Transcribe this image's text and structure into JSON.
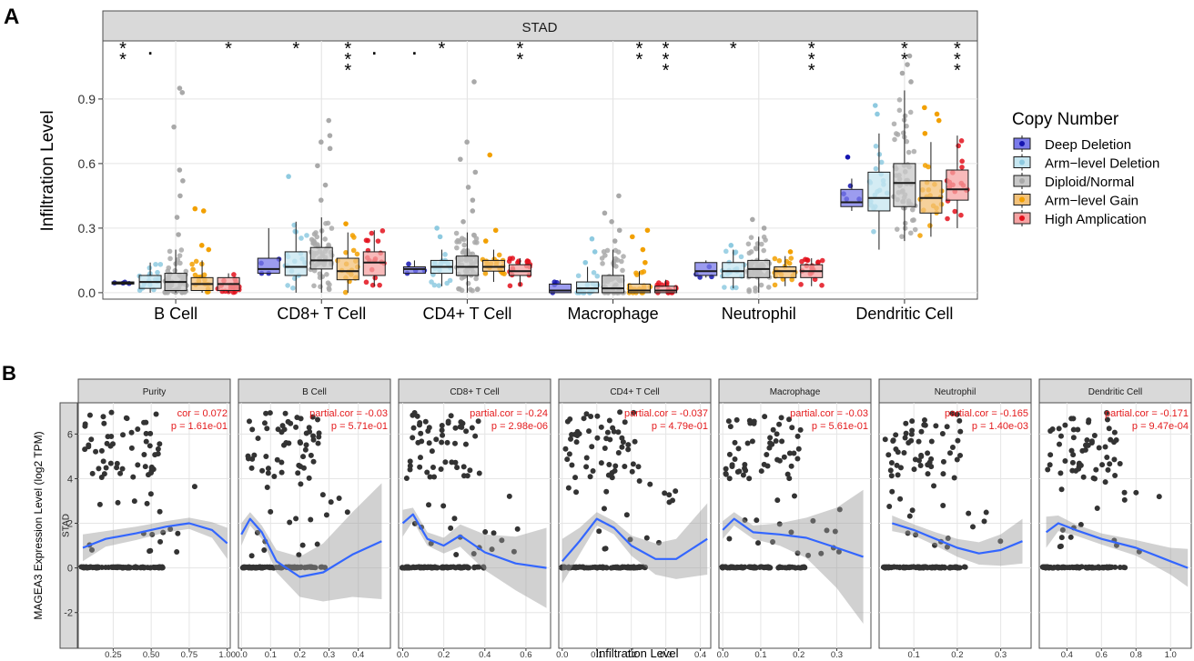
{
  "panels": {
    "a_label": "A",
    "b_label": "B"
  },
  "colors": {
    "panel_bg": "#ffffff",
    "grid": "#e5e5e5",
    "strip": "#d9d9d9",
    "frame": "#4d4d4d",
    "points_gray": "#bdbdbd",
    "scatter_point": "#333333",
    "loess_line": "#3366ff",
    "ribbon": "#999999",
    "annotation_red": "#e41a1c",
    "group_fill": [
      "#7b7bea",
      "#c6e6f0",
      "#c8c8c8",
      "#f3c27a",
      "#f5a3a3"
    ],
    "group_point": [
      "#1515b0",
      "#8ecae0",
      "#a9a9a9",
      "#f2a000",
      "#e3101c"
    ]
  },
  "chart_data": [
    {
      "type": "box",
      "panel": "A",
      "strip_title": "STAD",
      "ylabel": "Infiltration Level",
      "xlabel": "",
      "ylim": [
        -0.03,
        1.17
      ],
      "yticks": [
        0.0,
        0.3,
        0.6,
        0.9
      ],
      "ytick_labels": [
        "0.0",
        "0.3",
        "0.6",
        "0.9"
      ],
      "categories": [
        "B Cell",
        "CD8+ T Cell",
        "CD4+ T Cell",
        "Macrophage",
        "Neutrophil",
        "Dendritic Cell"
      ],
      "legend": {
        "title": "Copy Number",
        "position": "right",
        "entries": [
          "Deep Deletion",
          "Arm−level Deletion",
          "Diploid/Normal",
          "Arm−level Gain",
          "High Amplication"
        ]
      },
      "series": [
        {
          "name": "Deep Deletion",
          "boxes": [
            {
              "q1": 0.04,
              "med": 0.045,
              "q3": 0.05,
              "lo": 0.04,
              "hi": 0.05,
              "out": []
            },
            {
              "q1": 0.09,
              "med": 0.11,
              "q3": 0.16,
              "lo": 0.09,
              "hi": 0.3,
              "out": []
            },
            {
              "q1": 0.09,
              "med": 0.11,
              "q3": 0.12,
              "lo": 0.09,
              "hi": 0.15,
              "out": []
            },
            {
              "q1": 0.0,
              "med": 0.01,
              "q3": 0.04,
              "lo": 0.0,
              "hi": 0.06,
              "out": []
            },
            {
              "q1": 0.08,
              "med": 0.1,
              "q3": 0.14,
              "lo": 0.07,
              "hi": 0.15,
              "out": []
            },
            {
              "q1": 0.4,
              "med": 0.42,
              "q3": 0.48,
              "lo": 0.38,
              "hi": 0.53,
              "out": [
                0.63
              ]
            }
          ]
        },
        {
          "name": "Arm−level Deletion",
          "boxes": [
            {
              "q1": 0.02,
              "med": 0.05,
              "q3": 0.08,
              "lo": 0.0,
              "hi": 0.14,
              "out": []
            },
            {
              "q1": 0.08,
              "med": 0.12,
              "q3": 0.19,
              "lo": 0.0,
              "hi": 0.33,
              "out": [
                0.54
              ]
            },
            {
              "q1": 0.09,
              "med": 0.12,
              "q3": 0.15,
              "lo": 0.03,
              "hi": 0.2,
              "out": [
                0.26,
                0.3
              ]
            },
            {
              "q1": 0.0,
              "med": 0.02,
              "q3": 0.05,
              "lo": 0.0,
              "hi": 0.12,
              "out": [
                0.14,
                0.19,
                0.25
              ]
            },
            {
              "q1": 0.07,
              "med": 0.1,
              "q3": 0.14,
              "lo": 0.02,
              "hi": 0.2,
              "out": [
                0.22
              ]
            },
            {
              "q1": 0.38,
              "med": 0.44,
              "q3": 0.56,
              "lo": 0.2,
              "hi": 0.74,
              "out": [
                0.83,
                0.87
              ]
            }
          ]
        },
        {
          "name": "Diploid/Normal",
          "boxes": [
            {
              "q1": 0.01,
              "med": 0.05,
              "q3": 0.09,
              "lo": 0.0,
              "hi": 0.2,
              "out": [
                0.27,
                0.35,
                0.45,
                0.52,
                0.57,
                0.77,
                0.93,
                0.95
              ]
            },
            {
              "q1": 0.11,
              "med": 0.15,
              "q3": 0.21,
              "lo": 0.0,
              "hi": 0.35,
              "out": [
                0.43,
                0.5,
                0.59,
                0.67,
                0.7,
                0.73,
                0.8
              ]
            },
            {
              "q1": 0.08,
              "med": 0.12,
              "q3": 0.17,
              "lo": 0.0,
              "hi": 0.28,
              "out": [
                0.33,
                0.38,
                0.43,
                0.49,
                0.56,
                0.62,
                0.7,
                0.98
              ]
            },
            {
              "q1": 0.0,
              "med": 0.02,
              "q3": 0.08,
              "lo": 0.0,
              "hi": 0.2,
              "out": [
                0.24,
                0.29,
                0.33,
                0.37,
                0.45
              ]
            },
            {
              "q1": 0.07,
              "med": 0.11,
              "q3": 0.15,
              "lo": 0.0,
              "hi": 0.26,
              "out": [
                0.3,
                0.34
              ]
            },
            {
              "q1": 0.4,
              "med": 0.51,
              "q3": 0.6,
              "lo": 0.24,
              "hi": 0.94,
              "out": [
                0.98,
                1.02,
                1.06,
                1.1
              ]
            }
          ]
        },
        {
          "name": "Arm−level Gain",
          "boxes": [
            {
              "q1": 0.01,
              "med": 0.04,
              "q3": 0.07,
              "lo": 0.0,
              "hi": 0.15,
              "out": [
                0.2,
                0.22,
                0.38,
                0.39
              ]
            },
            {
              "q1": 0.06,
              "med": 0.1,
              "q3": 0.16,
              "lo": 0.0,
              "hi": 0.28,
              "out": [
                0.32
              ]
            },
            {
              "q1": 0.1,
              "med": 0.12,
              "q3": 0.15,
              "lo": 0.05,
              "hi": 0.2,
              "out": [
                0.24,
                0.29,
                0.64
              ]
            },
            {
              "q1": 0.0,
              "med": 0.01,
              "q3": 0.04,
              "lo": 0.0,
              "hi": 0.1,
              "out": [
                0.14,
                0.2,
                0.26,
                0.29
              ]
            },
            {
              "q1": 0.07,
              "med": 0.1,
              "q3": 0.12,
              "lo": 0.03,
              "hi": 0.17,
              "out": [
                0.19
              ]
            },
            {
              "q1": 0.37,
              "med": 0.44,
              "q3": 0.52,
              "lo": 0.26,
              "hi": 0.7,
              "out": [
                0.74,
                0.8,
                0.83,
                0.86
              ]
            }
          ]
        },
        {
          "name": "High Amplication",
          "boxes": [
            {
              "q1": 0.01,
              "med": 0.04,
              "q3": 0.07,
              "lo": 0.0,
              "hi": 0.09,
              "out": []
            },
            {
              "q1": 0.08,
              "med": 0.14,
              "q3": 0.19,
              "lo": 0.03,
              "hi": 0.29,
              "out": []
            },
            {
              "q1": 0.08,
              "med": 0.1,
              "q3": 0.13,
              "lo": 0.03,
              "hi": 0.16,
              "out": []
            },
            {
              "q1": 0.0,
              "med": 0.01,
              "q3": 0.03,
              "lo": 0.0,
              "hi": 0.06,
              "out": []
            },
            {
              "q1": 0.07,
              "med": 0.1,
              "q3": 0.13,
              "lo": 0.03,
              "hi": 0.16,
              "out": []
            },
            {
              "q1": 0.43,
              "med": 0.48,
              "q3": 0.57,
              "lo": 0.3,
              "hi": 0.73,
              "out": []
            }
          ]
        }
      ],
      "significance": [
        {
          "category": 0,
          "group": 0,
          "label": "**"
        },
        {
          "category": 0,
          "group": 1,
          "label": "."
        },
        {
          "category": 0,
          "group": 4,
          "label": "*"
        },
        {
          "category": 1,
          "group": 1,
          "label": "*"
        },
        {
          "category": 1,
          "group": 3,
          "label": "***"
        },
        {
          "category": 1,
          "group": 4,
          "label": "."
        },
        {
          "category": 2,
          "group": 0,
          "label": "."
        },
        {
          "category": 2,
          "group": 1,
          "label": "*"
        },
        {
          "category": 2,
          "group": 4,
          "label": "**"
        },
        {
          "category": 3,
          "group": 3,
          "label": "**"
        },
        {
          "category": 3,
          "group": 4,
          "label": "***"
        },
        {
          "category": 4,
          "group": 1,
          "label": "*"
        },
        {
          "category": 4,
          "group": 4,
          "label": "***"
        },
        {
          "category": 5,
          "group": 2,
          "label": "**"
        },
        {
          "category": 5,
          "group": 4,
          "label": "***"
        }
      ]
    },
    {
      "type": "scatter",
      "panel": "B",
      "row_strip": "STAD",
      "ylabel": "MAGEA3 Expression Level (log2 TPM)",
      "xlabel": "Infiltration Level",
      "ylim": [
        -3.6,
        7.4
      ],
      "yticks": [
        -2,
        0,
        2,
        4,
        6
      ],
      "ytick_labels": [
        "-2",
        "0",
        "2",
        "4",
        "6"
      ],
      "facets": [
        {
          "title": "Purity",
          "stat_line1": "cor = 0.072",
          "stat_line2": "p = 1.61e-01",
          "xlim": [
            0.02,
            1.02
          ],
          "xticks": [
            0.25,
            0.5,
            0.75,
            1.0
          ],
          "xtick_labels": [
            "0.25",
            "0.50",
            "0.75",
            "1.00"
          ],
          "fit": [
            [
              0.05,
              0.9
            ],
            [
              0.2,
              1.3
            ],
            [
              0.4,
              1.55
            ],
            [
              0.6,
              1.85
            ],
            [
              0.75,
              2.0
            ],
            [
              0.9,
              1.7
            ],
            [
              1.0,
              1.1
            ]
          ],
          "ribbon_halfwidth": [
            0.6,
            0.35,
            0.3,
            0.25,
            0.25,
            0.35,
            0.7
          ]
        },
        {
          "title": "B Cell",
          "stat_line1": "partial.cor = -0.03",
          "stat_line2": "p = 5.71e-01",
          "xlim": [
            -0.01,
            0.51
          ],
          "xticks": [
            0.0,
            0.1,
            0.2,
            0.3,
            0.4
          ],
          "xtick_labels": [
            "0.0",
            "0.1",
            "0.2",
            "0.3",
            "0.4"
          ],
          "fit": [
            [
              0.0,
              1.5
            ],
            [
              0.03,
              2.2
            ],
            [
              0.07,
              1.6
            ],
            [
              0.12,
              0.3
            ],
            [
              0.2,
              -0.4
            ],
            [
              0.28,
              -0.2
            ],
            [
              0.38,
              0.6
            ],
            [
              0.48,
              1.2
            ]
          ],
          "ribbon_halfwidth": [
            0.5,
            0.3,
            0.3,
            0.5,
            0.9,
            1.3,
            1.9,
            2.6
          ]
        },
        {
          "title": "CD8+ T Cell",
          "stat_line1": "partial.cor = -0.24",
          "stat_line2": "p = 2.98e-06",
          "xlim": [
            -0.02,
            0.72
          ],
          "xticks": [
            0.0,
            0.2,
            0.4,
            0.6
          ],
          "xtick_labels": [
            "0.0",
            "0.2",
            "0.4",
            "0.6"
          ],
          "fit": [
            [
              0.0,
              2.0
            ],
            [
              0.05,
              2.4
            ],
            [
              0.12,
              1.3
            ],
            [
              0.2,
              1.0
            ],
            [
              0.28,
              1.45
            ],
            [
              0.4,
              0.7
            ],
            [
              0.55,
              0.2
            ],
            [
              0.7,
              0.0
            ]
          ],
          "ribbon_halfwidth": [
            0.6,
            0.3,
            0.3,
            0.35,
            0.5,
            0.8,
            1.2,
            1.8
          ]
        },
        {
          "title": "CD4+ T Cell",
          "stat_line1": "partial.cor = -0.037",
          "stat_line2": "p = 4.79e-01",
          "xlim": [
            -0.01,
            0.43
          ],
          "xticks": [
            0.0,
            0.1,
            0.2,
            0.3,
            0.4
          ],
          "xtick_labels": [
            "0.0",
            "0.1",
            "0.2",
            "0.3",
            "0.4"
          ],
          "fit": [
            [
              0.0,
              0.3
            ],
            [
              0.05,
              1.2
            ],
            [
              0.1,
              2.2
            ],
            [
              0.15,
              1.8
            ],
            [
              0.2,
              1.0
            ],
            [
              0.27,
              0.4
            ],
            [
              0.33,
              0.4
            ],
            [
              0.42,
              1.3
            ]
          ],
          "ribbon_halfwidth": [
            1.0,
            0.6,
            0.3,
            0.3,
            0.45,
            0.7,
            0.9,
            1.6
          ]
        },
        {
          "title": "Macrophage",
          "stat_line1": "partial.cor = -0.03",
          "stat_line2": "p = 5.61e-01",
          "xlim": [
            -0.01,
            0.39
          ],
          "xticks": [
            0.0,
            0.1,
            0.2,
            0.3
          ],
          "xtick_labels": [
            "0.0",
            "0.1",
            "0.2",
            "0.3"
          ],
          "fit": [
            [
              0.0,
              1.7
            ],
            [
              0.03,
              2.2
            ],
            [
              0.08,
              1.6
            ],
            [
              0.15,
              1.5
            ],
            [
              0.22,
              1.35
            ],
            [
              0.3,
              0.9
            ],
            [
              0.37,
              0.5
            ]
          ],
          "ribbon_halfwidth": [
            0.4,
            0.3,
            0.3,
            0.5,
            0.9,
            1.8,
            3.0
          ]
        },
        {
          "title": "Neutrophil",
          "stat_line1": "partial.cor = -0.165",
          "stat_line2": "p = 1.40e-03",
          "xlim": [
            0.02,
            0.37
          ],
          "xticks": [
            0.1,
            0.2,
            0.3
          ],
          "xtick_labels": [
            "0.1",
            "0.2",
            "0.3"
          ],
          "fit": [
            [
              0.05,
              2.0
            ],
            [
              0.1,
              1.7
            ],
            [
              0.15,
              1.3
            ],
            [
              0.2,
              0.9
            ],
            [
              0.25,
              0.65
            ],
            [
              0.3,
              0.8
            ],
            [
              0.35,
              1.2
            ]
          ],
          "ribbon_halfwidth": [
            0.35,
            0.25,
            0.3,
            0.4,
            0.5,
            0.7,
            1.0
          ]
        },
        {
          "title": "Dendritic Cell",
          "stat_line1": "partial.cor = -0.171",
          "stat_line2": "p = 9.47e-04",
          "xlim": [
            0.24,
            1.12
          ],
          "xticks": [
            0.4,
            0.6,
            0.8,
            1.0
          ],
          "xtick_labels": [
            "0.4",
            "0.6",
            "0.8",
            "1.0"
          ],
          "fit": [
            [
              0.28,
              1.6
            ],
            [
              0.35,
              2.0
            ],
            [
              0.45,
              1.7
            ],
            [
              0.6,
              1.3
            ],
            [
              0.8,
              0.9
            ],
            [
              1.0,
              0.3
            ],
            [
              1.1,
              0.0
            ]
          ],
          "ribbon_halfwidth": [
            0.7,
            0.35,
            0.25,
            0.25,
            0.35,
            0.6,
            0.85
          ]
        }
      ]
    }
  ]
}
